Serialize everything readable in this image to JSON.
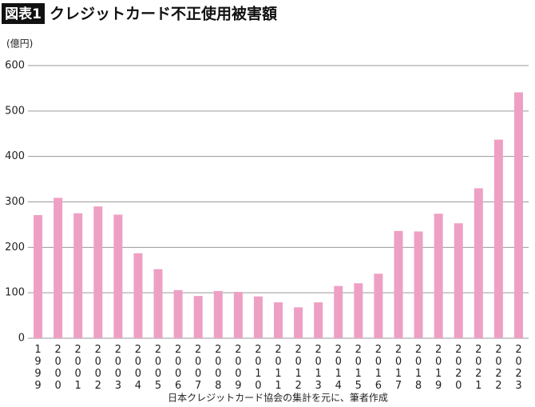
{
  "chart_data": {
    "type": "bar",
    "badge": "図表1",
    "title": "クレジットカード不正使用被害額",
    "unit": "(億円)",
    "source": "日本クレジットカード協会の集計を元に、筆者作成",
    "categories": [
      "1999",
      "2000",
      "2001",
      "2002",
      "2003",
      "2004",
      "2005",
      "2006",
      "2007",
      "2008",
      "2009",
      "2010",
      "2011",
      "2012",
      "2013",
      "2014",
      "2015",
      "2016",
      "2017",
      "2018",
      "2019",
      "2020",
      "2021",
      "2022",
      "2023"
    ],
    "values": [
      271,
      309,
      275,
      290,
      272,
      187,
      152,
      106,
      93,
      104,
      102,
      92,
      79,
      68,
      79,
      115,
      121,
      142,
      236,
      235,
      274,
      253,
      330,
      437,
      541
    ],
    "color": "#eea0c4",
    "ylim": [
      0,
      600
    ],
    "yticks": [
      0,
      100,
      200,
      300,
      400,
      500,
      600
    ],
    "grid": true
  }
}
